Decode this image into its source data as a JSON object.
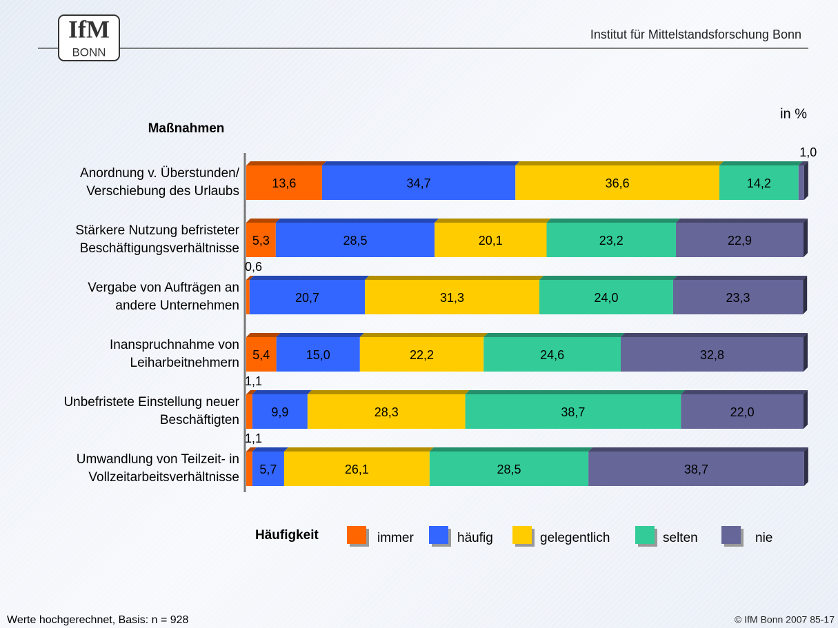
{
  "header": {
    "logo_top": "IfM",
    "logo_bottom": "BONN",
    "institute": "Institut für Mittelstandsforschung Bonn"
  },
  "chart_data": {
    "type": "bar_stacked_horizontal",
    "ylabel": "Maßnahmen",
    "unit": "in %",
    "legend_title": "Häufigkeit",
    "categories": [
      "Anordnung v. Überstunden/\nVerschiebung des Urlaubs",
      "Stärkere Nutzung befristeter\nBeschäftigungsverhältnisse",
      "Vergabe von Aufträgen an\nandere Unternehmen",
      "Inanspruchnahme von\nLeiharbeitnehmern",
      "Unbefristete Einstellung neuer\nBeschäftigten",
      "Umwandlung von Teilzeit- in\nVollzeitarbeitsverhältnisse"
    ],
    "xlim": [
      0,
      100
    ],
    "series": [
      {
        "name": "immer",
        "color": "#ff6600",
        "values": [
          13.6,
          5.3,
          0.6,
          5.4,
          1.1,
          1.1
        ],
        "value_labels": [
          "13,6",
          "5,3",
          "0,6",
          "5,4",
          "1,1",
          "1,1"
        ]
      },
      {
        "name": "häufig",
        "color": "#3366ff",
        "values": [
          34.7,
          28.5,
          20.7,
          15.0,
          9.9,
          5.7
        ],
        "value_labels": [
          "34,7",
          "28,5",
          "20,7",
          "15,0",
          "9,9",
          "5,7"
        ]
      },
      {
        "name": "gelegentlich",
        "color": "#ffcc00",
        "values": [
          36.6,
          20.1,
          31.3,
          22.2,
          28.3,
          26.1
        ],
        "value_labels": [
          "36,6",
          "20,1",
          "31,3",
          "22,2",
          "28,3",
          "26,1"
        ]
      },
      {
        "name": "selten",
        "color": "#33cc99",
        "values": [
          14.2,
          23.2,
          24.0,
          24.6,
          38.7,
          28.5
        ],
        "value_labels": [
          "14,2",
          "23,2",
          "24,0",
          "24,6",
          "38,7",
          "28,5"
        ]
      },
      {
        "name": "nie",
        "color": "#666699",
        "values": [
          1.0,
          22.9,
          23.3,
          32.8,
          22.0,
          38.7
        ],
        "value_labels": [
          "1,0",
          "22,9",
          "23,3",
          "32,8",
          "22,0",
          "38,7"
        ]
      }
    ]
  },
  "footer": {
    "note": "Werte hochgerechnet, Basis: n = 928",
    "copyright": "© IfM Bonn 2007  85-17"
  }
}
